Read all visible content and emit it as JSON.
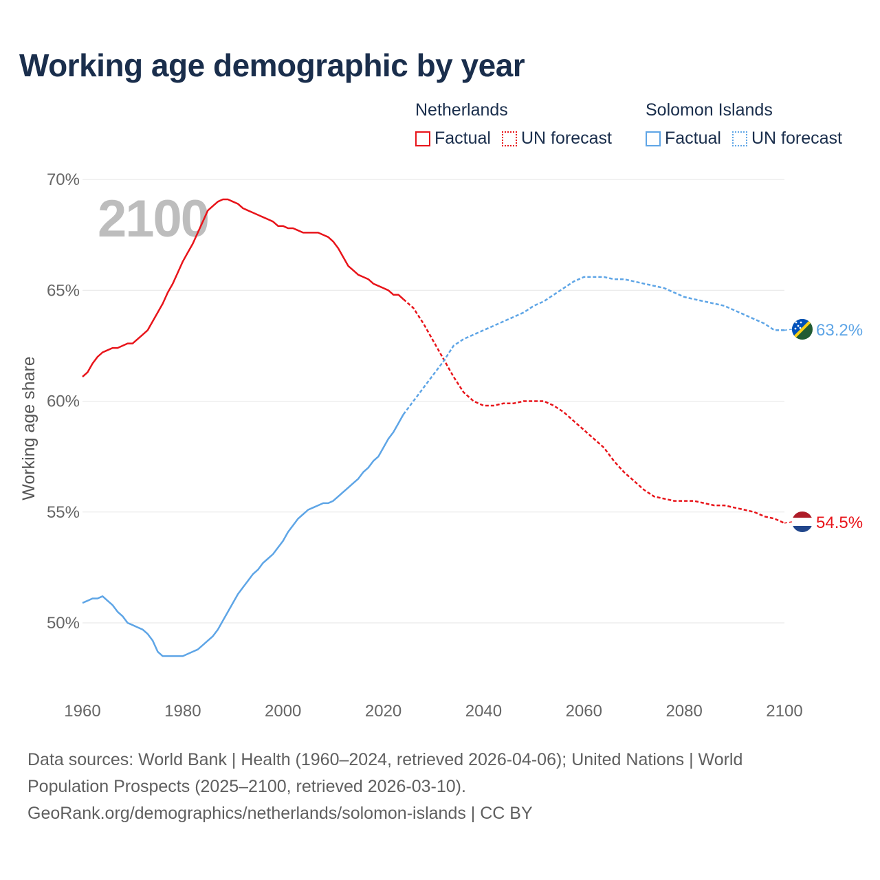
{
  "header": {
    "title": "Working age demographic by year"
  },
  "legend": {
    "groups": [
      {
        "name": "Netherlands",
        "factual": "Factual",
        "forecast": "UN forecast",
        "color": "#e8141a"
      },
      {
        "name": "Solomon Islands",
        "factual": "Factual",
        "forecast": "UN forecast",
        "color": "#5ea5e6"
      }
    ]
  },
  "year_watermark": "2100",
  "footer": {
    "sources": "Data sources: World Bank | Health (1960–2024, retrieved 2026-04-06); United Nations | World Population Prospects (2025–2100, retrieved 2026-03-10).",
    "credit": "GeoRank.org/demographics/netherlands/solomon-islands | CC BY"
  },
  "chart_data": {
    "type": "line",
    "title": "Working age demographic by year",
    "xlabel": "",
    "ylabel": "Working age share",
    "xlim": [
      1960,
      2100
    ],
    "ylim": [
      47,
      70
    ],
    "x_ticks": [
      1960,
      1980,
      2000,
      2020,
      2040,
      2060,
      2080,
      2100
    ],
    "y_ticks": [
      50,
      55,
      60,
      65,
      70
    ],
    "y_tick_labels": [
      "50%",
      "55%",
      "60%",
      "65%",
      "70%"
    ],
    "forecast_start": 2024,
    "grid": true,
    "series": [
      {
        "name": "Netherlands",
        "color": "#e8141a",
        "end_label": "54.5%",
        "flag": "netherlands-flag-icon",
        "x": [
          1960,
          1961,
          1962,
          1963,
          1964,
          1965,
          1966,
          1967,
          1968,
          1969,
          1970,
          1971,
          1972,
          1973,
          1974,
          1975,
          1976,
          1977,
          1978,
          1979,
          1980,
          1981,
          1982,
          1983,
          1984,
          1985,
          1986,
          1987,
          1988,
          1989,
          1990,
          1991,
          1992,
          1993,
          1994,
          1995,
          1996,
          1997,
          1998,
          1999,
          2000,
          2001,
          2002,
          2003,
          2004,
          2005,
          2006,
          2007,
          2008,
          2009,
          2010,
          2011,
          2012,
          2013,
          2014,
          2015,
          2016,
          2017,
          2018,
          2019,
          2020,
          2021,
          2022,
          2023,
          2024,
          2026,
          2028,
          2030,
          2032,
          2034,
          2036,
          2038,
          2040,
          2042,
          2044,
          2046,
          2048,
          2050,
          2052,
          2054,
          2056,
          2058,
          2060,
          2062,
          2064,
          2066,
          2068,
          2070,
          2072,
          2074,
          2076,
          2078,
          2080,
          2082,
          2084,
          2086,
          2088,
          2090,
          2092,
          2094,
          2096,
          2098,
          2100
        ],
        "y": [
          61.1,
          61.3,
          61.7,
          62.0,
          62.2,
          62.3,
          62.4,
          62.4,
          62.5,
          62.6,
          62.6,
          62.8,
          63.0,
          63.2,
          63.6,
          64.0,
          64.4,
          64.9,
          65.3,
          65.8,
          66.3,
          66.7,
          67.1,
          67.6,
          68.1,
          68.6,
          68.8,
          69.0,
          69.1,
          69.1,
          69.0,
          68.9,
          68.7,
          68.6,
          68.5,
          68.4,
          68.3,
          68.2,
          68.1,
          67.9,
          67.9,
          67.8,
          67.8,
          67.7,
          67.6,
          67.6,
          67.6,
          67.6,
          67.5,
          67.4,
          67.2,
          66.9,
          66.5,
          66.1,
          65.9,
          65.7,
          65.6,
          65.5,
          65.3,
          65.2,
          65.1,
          65.0,
          64.8,
          64.8,
          64.6,
          64.2,
          63.5,
          62.7,
          61.9,
          61.1,
          60.4,
          60.0,
          59.8,
          59.8,
          59.9,
          59.9,
          60.0,
          60.0,
          60.0,
          59.8,
          59.5,
          59.1,
          58.7,
          58.3,
          57.9,
          57.3,
          56.8,
          56.4,
          56.0,
          55.7,
          55.6,
          55.5,
          55.5,
          55.5,
          55.4,
          55.3,
          55.3,
          55.2,
          55.1,
          55.0,
          54.8,
          54.7,
          54.5
        ]
      },
      {
        "name": "Solomon Islands",
        "color": "#5ea5e6",
        "end_label": "63.2%",
        "flag": "solomon-islands-flag-icon",
        "x": [
          1960,
          1961,
          1962,
          1963,
          1964,
          1965,
          1966,
          1967,
          1968,
          1969,
          1970,
          1971,
          1972,
          1973,
          1974,
          1975,
          1976,
          1977,
          1978,
          1979,
          1980,
          1981,
          1982,
          1983,
          1984,
          1985,
          1986,
          1987,
          1988,
          1989,
          1990,
          1991,
          1992,
          1993,
          1994,
          1995,
          1996,
          1997,
          1998,
          1999,
          2000,
          2001,
          2002,
          2003,
          2004,
          2005,
          2006,
          2007,
          2008,
          2009,
          2010,
          2011,
          2012,
          2013,
          2014,
          2015,
          2016,
          2017,
          2018,
          2019,
          2020,
          2021,
          2022,
          2023,
          2024,
          2026,
          2028,
          2030,
          2032,
          2034,
          2036,
          2038,
          2040,
          2042,
          2044,
          2046,
          2048,
          2050,
          2052,
          2054,
          2056,
          2058,
          2060,
          2062,
          2064,
          2066,
          2068,
          2070,
          2072,
          2074,
          2076,
          2078,
          2080,
          2082,
          2084,
          2086,
          2088,
          2090,
          2092,
          2094,
          2096,
          2098,
          2100
        ],
        "y": [
          50.9,
          51.0,
          51.1,
          51.1,
          51.2,
          51.0,
          50.8,
          50.5,
          50.3,
          50.0,
          49.9,
          49.8,
          49.7,
          49.5,
          49.2,
          48.7,
          48.5,
          48.5,
          48.5,
          48.5,
          48.5,
          48.6,
          48.7,
          48.8,
          49.0,
          49.2,
          49.4,
          49.7,
          50.1,
          50.5,
          50.9,
          51.3,
          51.6,
          51.9,
          52.2,
          52.4,
          52.7,
          52.9,
          53.1,
          53.4,
          53.7,
          54.1,
          54.4,
          54.7,
          54.9,
          55.1,
          55.2,
          55.3,
          55.4,
          55.4,
          55.5,
          55.7,
          55.9,
          56.1,
          56.3,
          56.5,
          56.8,
          57.0,
          57.3,
          57.5,
          57.9,
          58.3,
          58.6,
          59.0,
          59.4,
          60.0,
          60.6,
          61.2,
          61.8,
          62.5,
          62.8,
          63.0,
          63.2,
          63.4,
          63.6,
          63.8,
          64.0,
          64.3,
          64.5,
          64.8,
          65.1,
          65.4,
          65.6,
          65.6,
          65.6,
          65.5,
          65.5,
          65.4,
          65.3,
          65.2,
          65.1,
          64.9,
          64.7,
          64.6,
          64.5,
          64.4,
          64.3,
          64.1,
          63.9,
          63.7,
          63.5,
          63.2,
          63.2
        ]
      }
    ]
  }
}
